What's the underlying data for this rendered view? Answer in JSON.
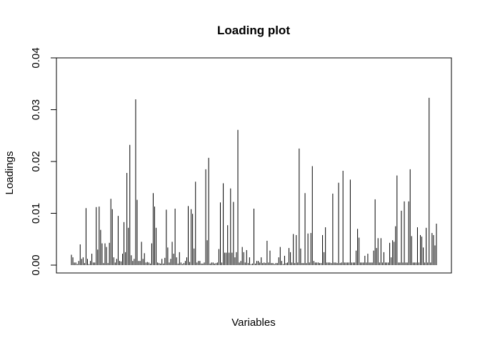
{
  "chart_data": {
    "type": "bar",
    "title": "Loading plot",
    "xlabel": "Variables",
    "ylabel": "Loadings",
    "ylim": [
      0,
      0.04
    ],
    "yticks": [
      "0.00",
      "0.01",
      "0.02",
      "0.03",
      "0.04"
    ],
    "ytick_values": [
      0,
      0.01,
      0.02,
      0.03,
      0.04
    ],
    "grid": false,
    "legend": "none",
    "series": [
      {
        "values": [
          0.002,
          0.0015,
          0.0005,
          0.0005,
          0.0002,
          0.0008,
          0.004,
          0.0012,
          0.0015,
          0.0004,
          0.011,
          0.0012,
          0.0002,
          0.0008,
          0.0022,
          0.0005,
          0.0005,
          0.0112,
          0.003,
          0.0113,
          0.0068,
          0.0042,
          0.0004,
          0.0042,
          0.0035,
          0.0004,
          0.0043,
          0.0128,
          0.0108,
          0.0015,
          0.0005,
          0.0012,
          0.0095,
          0.0008,
          0.0007,
          0.0022,
          0.0083,
          0.0025,
          0.0178,
          0.0072,
          0.0232,
          0.0019,
          0.0008,
          0.0012,
          0.032,
          0.0126,
          0.0008,
          0.0008,
          0.0045,
          0.0012,
          0.0023,
          0.0005,
          0.0006,
          0.0005,
          0.0003,
          0.0042,
          0.0139,
          0.0113,
          0.0072,
          0.0005,
          0.0004,
          0.0003,
          0.0012,
          0.0003,
          0.0014,
          0.0107,
          0.0034,
          0.0005,
          0.0012,
          0.0045,
          0.0022,
          0.0109,
          0.0015,
          0.0003,
          0.0025,
          0.0005,
          0.0002,
          0.0004,
          0.0008,
          0.0015,
          0.0114,
          0.0006,
          0.0108,
          0.0099,
          0.0032,
          0.0161,
          0.0005,
          0.0008,
          0.0008,
          0.0003,
          0.0003,
          0.0005,
          0.0185,
          0.0048,
          0.0207,
          0.0003,
          0.0005,
          0.0005,
          0.0003,
          0.0004,
          0.0005,
          0.0031,
          0.0121,
          0.0005,
          0.0158,
          0.0024,
          0.0024,
          0.0077,
          0.0024,
          0.0148,
          0.0024,
          0.0122,
          0.0015,
          0.0025,
          0.0261,
          0.0005,
          0.0008,
          0.0035,
          0.0025,
          0.0005,
          0.0029,
          0.0004,
          0.0015,
          0.0002,
          0.0003,
          0.0109,
          0.0003,
          0.0008,
          0.0008,
          0.0005,
          0.0015,
          0.0004,
          0.0005,
          0.0004,
          0.0047,
          0.0005,
          0.0028,
          0.0004,
          0.0004,
          0.0002,
          0.0004,
          0.0004,
          0.0015,
          0.0035,
          0.0008,
          0.0002,
          0.0018,
          0.0004,
          0.0005,
          0.0033,
          0.0025,
          0.0005,
          0.006,
          0.0004,
          0.0058,
          0.0005,
          0.0225,
          0.0032,
          0.0004,
          0.0004,
          0.0139,
          0.0004,
          0.0061,
          0.0005,
          0.0062,
          0.0191,
          0.0008,
          0.0005,
          0.0005,
          0.0005,
          0.0004,
          0.0004,
          0.0058,
          0.0025,
          0.0073,
          0.0005,
          0.0005,
          0.0005,
          0.0004,
          0.0138,
          0.0005,
          0.0005,
          0.0004,
          0.0159,
          0.0004,
          0.0005,
          0.0182,
          0.0005,
          0.0005,
          0.0005,
          0.0005,
          0.0165,
          0.0005,
          0.0005,
          0.0005,
          0.0028,
          0.007,
          0.0053,
          0.0005,
          0.0005,
          0.0005,
          0.0018,
          0.0005,
          0.0022,
          0.0005,
          0.0005,
          0.0005,
          0.0028,
          0.0127,
          0.0033,
          0.0052,
          0.0005,
          0.0052,
          0.0005,
          0.0025,
          0.0005,
          0.0005,
          0.0005,
          0.0043,
          0.0015,
          0.0048,
          0.0045,
          0.0075,
          0.0173,
          0.0005,
          0.0005,
          0.0105,
          0.0005,
          0.0123,
          0.0005,
          0.0005,
          0.0123,
          0.0185,
          0.0056,
          0.0005,
          0.0005,
          0.0005,
          0.0073,
          0.0005,
          0.0058,
          0.0055,
          0.0034,
          0.0005,
          0.0072,
          0.0005,
          0.0323,
          0.0005,
          0.0062,
          0.0058,
          0.0038,
          0.008
        ]
      }
    ]
  }
}
